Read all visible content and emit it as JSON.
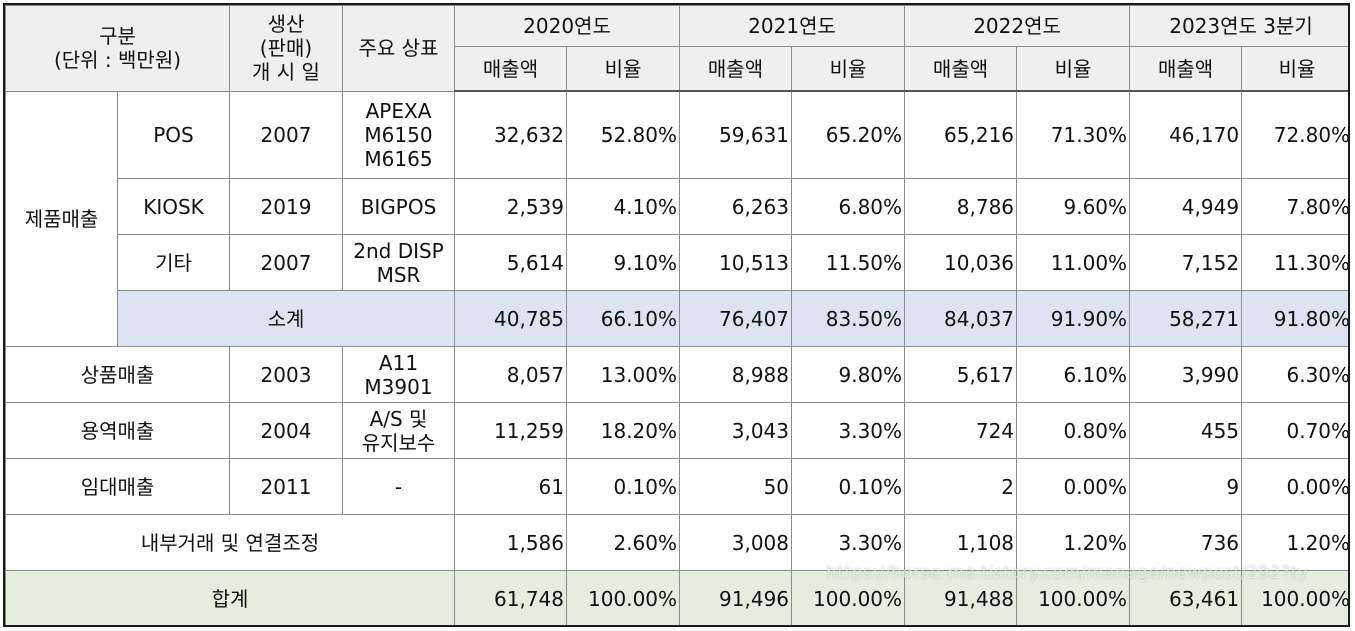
{
  "header": {
    "category_line1": "구분",
    "category_line2": "(단위 : 백만원)",
    "start_line1": "생산",
    "start_line2": "(판매)",
    "start_line3": "개 시 일",
    "brand": "주요 상표",
    "years": [
      "2020연도",
      "2021연도",
      "2022연도",
      "2023연도 3분기"
    ],
    "sales_label": "매출액",
    "ratio_label": "비율"
  },
  "product_sales": {
    "label": "제품매출",
    "rows": [
      {
        "name": "POS",
        "start": "2007",
        "brand_lines": [
          "APEXA",
          "M6150",
          "M6165"
        ],
        "values": [
          "32,632",
          "52.80%",
          "59,631",
          "65.20%",
          "65,216",
          "71.30%",
          "46,170",
          "72.80%"
        ]
      },
      {
        "name": "KIOSK",
        "start": "2019",
        "brand_lines": [
          "BIGPOS"
        ],
        "values": [
          "2,539",
          "4.10%",
          "6,263",
          "6.80%",
          "8,786",
          "9.60%",
          "4,949",
          "7.80%"
        ]
      },
      {
        "name": "기타",
        "start": "2007",
        "brand_lines": [
          "2nd DISP",
          "MSR"
        ],
        "values": [
          "5,614",
          "9.10%",
          "10,513",
          "11.50%",
          "10,036",
          "11.00%",
          "7,152",
          "11.30%"
        ]
      }
    ],
    "subtotal": {
      "label": "소계",
      "values": [
        "40,785",
        "66.10%",
        "76,407",
        "83.50%",
        "84,037",
        "91.90%",
        "58,271",
        "91.80%"
      ]
    }
  },
  "other_rows": [
    {
      "name": "상품매출",
      "start": "2003",
      "brand_lines": [
        "A11",
        "M3901"
      ],
      "values": [
        "8,057",
        "13.00%",
        "8,988",
        "9.80%",
        "5,617",
        "6.10%",
        "3,990",
        "6.30%"
      ]
    },
    {
      "name": "용역매출",
      "start": "2004",
      "brand_lines": [
        "A/S 및",
        "유지보수"
      ],
      "values": [
        "11,259",
        "18.20%",
        "3,043",
        "3.30%",
        "724",
        "0.80%",
        "455",
        "0.70%"
      ]
    },
    {
      "name": "임대매출",
      "start": "2011",
      "brand_lines": [
        "-"
      ],
      "values": [
        "61",
        "0.10%",
        "50",
        "0.10%",
        "2",
        "0.00%",
        "9",
        "0.00%"
      ]
    }
  ],
  "internal": {
    "label": "내부거래 및 연결조정",
    "values": [
      "1,586",
      "2.60%",
      "3,008",
      "3.30%",
      "1,108",
      "1.20%",
      "736",
      "1.20%"
    ]
  },
  "total": {
    "label": "합계",
    "values": [
      "61,748",
      "100.00%",
      "91,496",
      "100.00%",
      "91,488",
      "100.00%",
      "63,461",
      "100.00%"
    ]
  },
  "watermark": "https://horse-ma.tistory.com/manage/newpost/292?ty"
}
